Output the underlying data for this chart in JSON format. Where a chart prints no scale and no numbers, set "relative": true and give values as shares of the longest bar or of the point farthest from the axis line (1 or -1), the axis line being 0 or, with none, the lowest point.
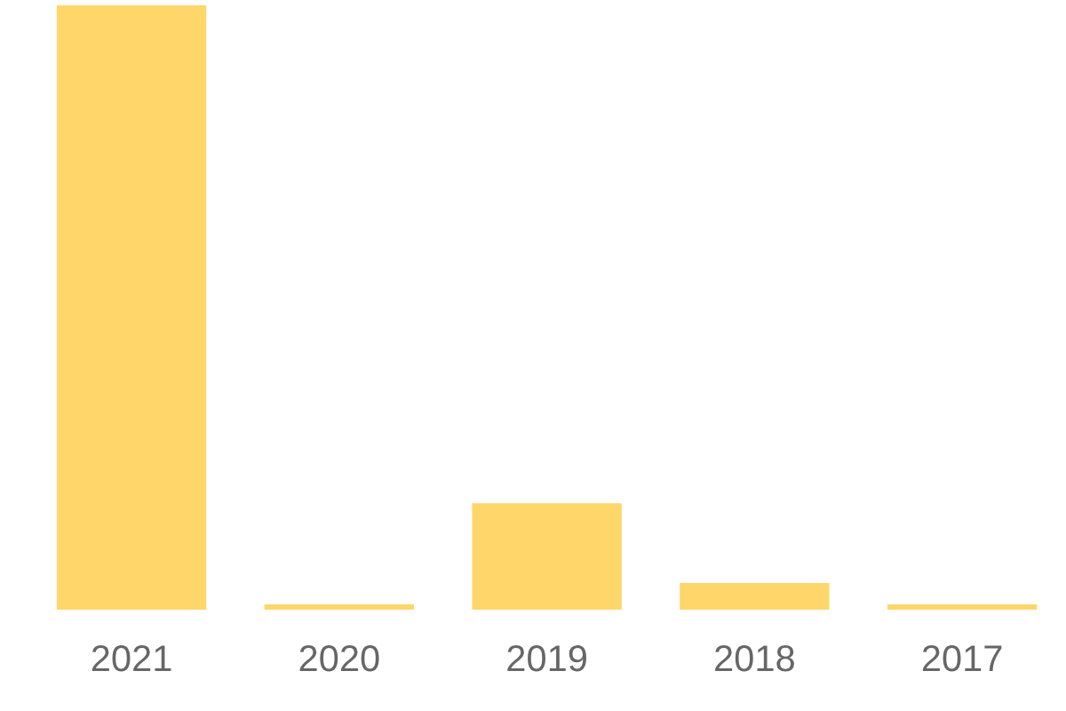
{
  "chart_data": {
    "type": "bar",
    "relative": true,
    "categories": [
      "2021",
      "2020",
      "2019",
      "2018",
      "2017"
    ],
    "values": [
      1,
      0.009,
      0.176,
      0.044,
      0.009
    ],
    "color": "#fed66a",
    "grid": false,
    "legend": false
  }
}
